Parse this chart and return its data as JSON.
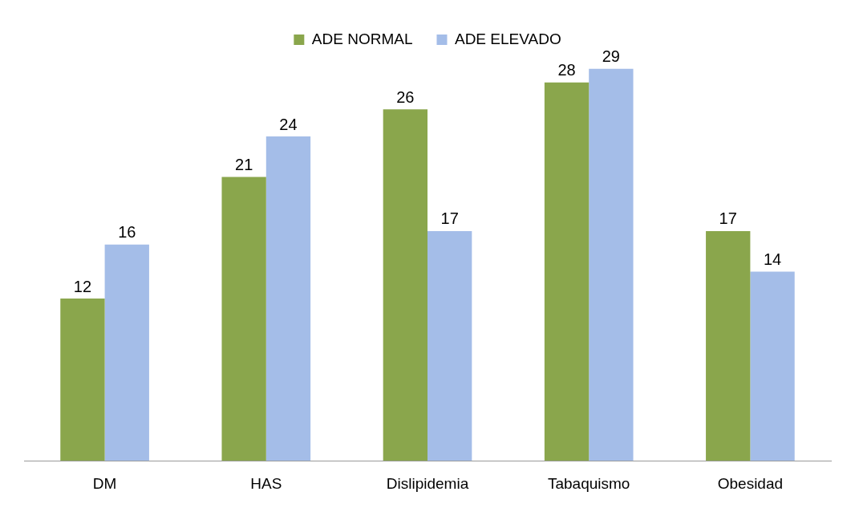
{
  "chart_data": {
    "type": "bar",
    "categories": [
      "DM",
      "HAS",
      "Dislipidemia",
      "Tabaquismo",
      "Obesidad"
    ],
    "series": [
      {
        "name": "ADE NORMAL",
        "color": "#8aa64c",
        "values": [
          12,
          21,
          26,
          28,
          17
        ]
      },
      {
        "name": "ADE ELEVADO",
        "color": "#a4bde8",
        "values": [
          16,
          24,
          17,
          29,
          14
        ]
      }
    ],
    "data_labels": true,
    "legend": "top",
    "grid": false
  }
}
